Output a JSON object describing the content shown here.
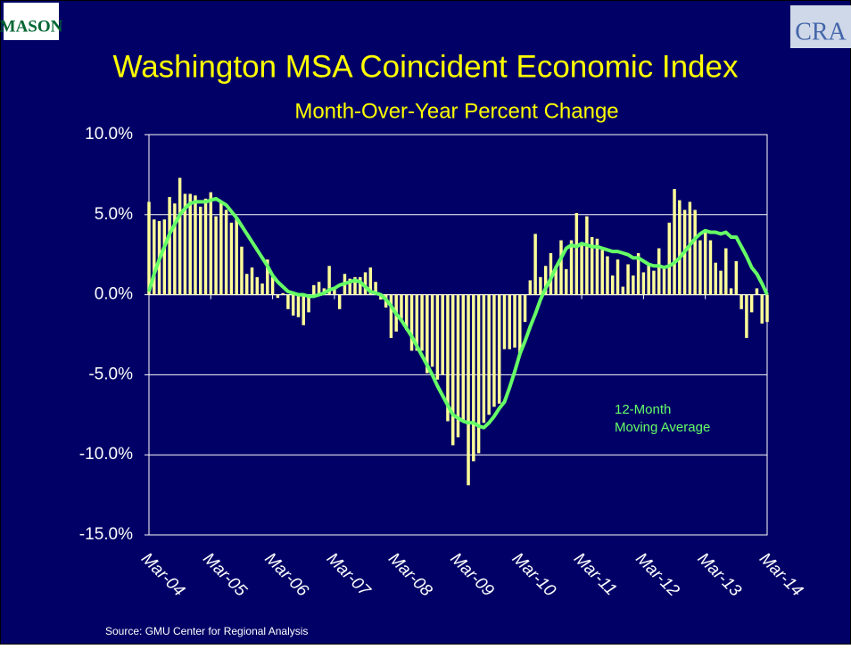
{
  "chart_data": {
    "type": "combo",
    "title": "Washington MSA Coincident Economic Index",
    "subtitle": "Month-Over-Year Percent Change",
    "annotation": [
      "12-Month",
      "Moving Average"
    ],
    "source": "Source:  GMU Center for Regional Analysis",
    "logo_left": "MASON",
    "logo_right": "CRA",
    "categories": [
      "Mar-04",
      null,
      null,
      null,
      null,
      null,
      null,
      null,
      null,
      null,
      null,
      null,
      "Mar-05",
      null,
      null,
      null,
      null,
      null,
      null,
      null,
      null,
      null,
      null,
      null,
      "Mar-06",
      null,
      null,
      null,
      null,
      null,
      null,
      null,
      null,
      null,
      null,
      null,
      "Mar-07",
      null,
      null,
      null,
      null,
      null,
      null,
      null,
      null,
      null,
      null,
      null,
      "Mar-08",
      null,
      null,
      null,
      null,
      null,
      null,
      null,
      null,
      null,
      null,
      null,
      "Mar-09",
      null,
      null,
      null,
      null,
      null,
      null,
      null,
      null,
      null,
      null,
      null,
      "Mar-10",
      null,
      null,
      null,
      null,
      null,
      null,
      null,
      null,
      null,
      null,
      null,
      "Mar-11",
      null,
      null,
      null,
      null,
      null,
      null,
      null,
      null,
      null,
      null,
      null,
      "Mar-12",
      null,
      null,
      null,
      null,
      null,
      null,
      null,
      null,
      null,
      null,
      null,
      "Mar-13",
      null,
      null,
      null,
      null,
      null,
      null,
      null,
      null,
      null,
      null,
      null,
      "Mar-14"
    ],
    "series": [
      {
        "type": "bar",
        "color": "#ffff99",
        "values": [
          5.8,
          4.7,
          4.6,
          4.7,
          6.1,
          5.7,
          7.3,
          6.3,
          6.3,
          6.2,
          5.5,
          6.0,
          6.4,
          4.9,
          5.8,
          5.3,
          4.5,
          4.8,
          3.0,
          1.3,
          1.7,
          1.1,
          0.7,
          2.2,
          1.1,
          -0.2,
          0.1,
          -0.9,
          -1.3,
          -1.4,
          -1.9,
          -1.1,
          0.6,
          0.8,
          0.4,
          1.8,
          0.4,
          -0.9,
          1.3,
          1.0,
          1.1,
          1.1,
          1.4,
          1.7,
          0.8,
          -0.3,
          -0.8,
          -2.7,
          -2.3,
          -1.5,
          -2.2,
          -3.5,
          -3.5,
          -3.5,
          -4.9,
          -4.5,
          -5.3,
          -5.0,
          -7.9,
          -9.4,
          -8.9,
          -7.9,
          -11.9,
          -10.4,
          -9.9,
          -8.0,
          -7.5,
          -7.0,
          -6.8,
          -3.4,
          -3.4,
          -3.3,
          -3.8,
          -1.7,
          0.9,
          3.8,
          1.1,
          1.8,
          2.6,
          1.8,
          3.4,
          1.6,
          3.4,
          5.1,
          3.2,
          4.9,
          3.6,
          3.5,
          2.8,
          2.4,
          1.2,
          2.2,
          0.5,
          1.9,
          1.2,
          2.6,
          1.4,
          1.9,
          1.5,
          2.9,
          1.8,
          4.5,
          6.6,
          5.9,
          5.3,
          5.8,
          5.3,
          3.4,
          4.0,
          3.4,
          2.0,
          1.5,
          2.9,
          0.4,
          2.1,
          -0.9,
          -2.7,
          -1.1,
          0.4,
          -1.8,
          -1.7
        ]
      },
      {
        "type": "line",
        "color": "#66ff66",
        "values": [
          0.2,
          1.3,
          2.2,
          3.0,
          3.8,
          4.4,
          5.0,
          5.4,
          5.7,
          5.8,
          5.8,
          5.8,
          5.9,
          6.0,
          5.8,
          5.6,
          5.2,
          4.8,
          4.3,
          3.8,
          3.3,
          2.8,
          2.3,
          1.8,
          1.2,
          0.8,
          0.5,
          0.2,
          0.1,
          0.0,
          0.0,
          -0.1,
          -0.1,
          0.0,
          0.1,
          0.3,
          0.4,
          0.6,
          0.7,
          0.8,
          0.9,
          0.8,
          0.5,
          0.2,
          0.1,
          0.0,
          -0.3,
          -0.7,
          -1.2,
          -1.6,
          -2.1,
          -2.6,
          -3.2,
          -3.8,
          -4.4,
          -5.0,
          -5.7,
          -6.3,
          -6.9,
          -7.5,
          -7.7,
          -7.9,
          -8.0,
          -8.0,
          -8.2,
          -8.3,
          -8.0,
          -7.6,
          -7.1,
          -6.7,
          -5.8,
          -4.8,
          -3.7,
          -2.9,
          -2.0,
          -1.2,
          -0.3,
          0.4,
          1.0,
          1.7,
          2.3,
          2.9,
          3.1,
          3.0,
          3.2,
          3.1,
          3.0,
          3.0,
          2.9,
          2.8,
          2.7,
          2.7,
          2.6,
          2.5,
          2.3,
          2.3,
          2.1,
          1.9,
          1.8,
          1.8,
          1.7,
          1.8,
          2.0,
          2.3,
          2.7,
          3.1,
          3.5,
          3.8,
          4.0,
          3.9,
          3.9,
          3.8,
          3.9,
          3.6,
          3.6,
          3.0,
          2.4,
          1.7,
          1.3,
          0.7,
          0.0
        ]
      }
    ],
    "ylim": [
      -15,
      10
    ],
    "yticks": [
      {
        "value": -15,
        "label": "-15.0%"
      },
      {
        "value": -10,
        "label": "-10.0%"
      },
      {
        "value": -5,
        "label": "-5.0%"
      },
      {
        "value": 0,
        "label": "0.0%"
      },
      {
        "value": 5,
        "label": "5.0%"
      },
      {
        "value": 10,
        "label": "10.0%"
      }
    ],
    "grid": true
  }
}
